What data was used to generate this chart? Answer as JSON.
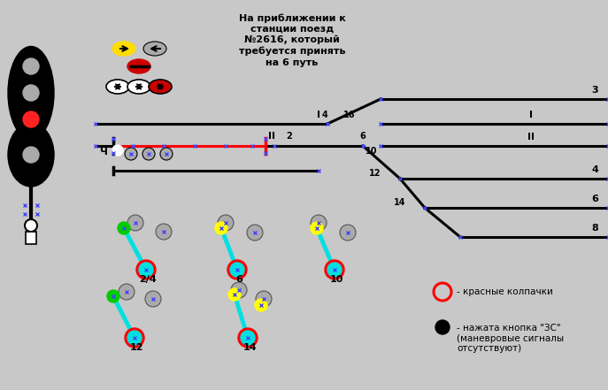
{
  "bg_color": "#c8c8c8",
  "title_text": "На приближении к\nстанции поезд\n№2616, который\nтребуется принять\nна 6 путь",
  "legend1_text": "- красные колпачки",
  "legend2_text": "- нажата кнопка \"ЗС\"\n(маневровые сигналы\nотсутствуют)",
  "track_color": "#000000",
  "red_track_color": "#ff0000",
  "cyan_color": "#00e0e0",
  "green_color": "#00cc00",
  "yellow_color": "#ffff00",
  "grey_color": "#aaaaaa"
}
